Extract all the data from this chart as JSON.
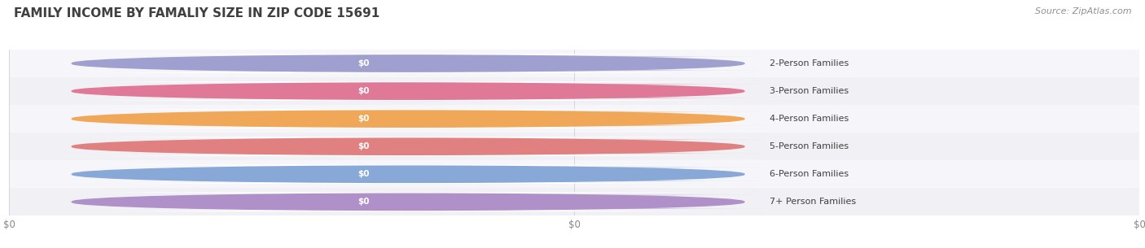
{
  "title": "FAMILY INCOME BY FAMALIY SIZE IN ZIP CODE 15691",
  "source_text": "Source: ZipAtlas.com",
  "categories": [
    "2-Person Families",
    "3-Person Families",
    "4-Person Families",
    "5-Person Families",
    "6-Person Families",
    "7+ Person Families"
  ],
  "values": [
    0,
    0,
    0,
    0,
    0,
    0
  ],
  "value_labels": [
    "$0",
    "$0",
    "$0",
    "$0",
    "$0",
    "$0"
  ],
  "bar_colors": [
    "#a0a0d0",
    "#e07898",
    "#f0a858",
    "#e08080",
    "#88a8d8",
    "#b090c8"
  ],
  "fig_bg_color": "#ffffff",
  "title_fontsize": 11,
  "title_color": "#404040",
  "source_fontsize": 8,
  "source_color": "#909090",
  "label_fontsize": 8,
  "value_fontsize": 7.5,
  "tick_fontsize": 8.5,
  "tick_color": "#888888",
  "xlabel_ticks": [
    "$0",
    "$0",
    "$0"
  ],
  "xtick_positions": [
    0.0,
    0.5,
    1.0
  ],
  "xlim": [
    0,
    1
  ],
  "row_colors": [
    "#f5f5fa",
    "#f0f0f5"
  ]
}
